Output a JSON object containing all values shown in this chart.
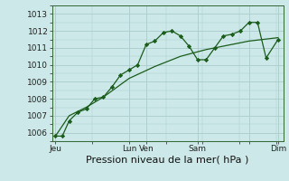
{
  "xlabel": "Pression niveau de la mer( hPa )",
  "ylim": [
    1005.5,
    1013.5
  ],
  "xlim": [
    0,
    13.5
  ],
  "background_color": "#cce8e8",
  "grid_color": "#aacccc",
  "line_color1": "#1a5c1a",
  "line_color2": "#1a5c1a",
  "x_tick_positions": [
    0.2,
    4.5,
    5.5,
    8.5,
    11.5,
    13.2
  ],
  "x_tick_labels": [
    "Jeu",
    "Lun",
    "Ven",
    "Sam",
    "",
    "Dim"
  ],
  "series1_x": [
    0.2,
    0.6,
    1.0,
    1.5,
    2.0,
    2.5,
    3.0,
    3.5,
    4.0,
    4.5,
    5.0,
    5.5,
    6.0,
    6.5,
    7.0,
    7.5,
    8.0,
    8.5,
    9.0,
    9.5,
    10.0,
    10.5,
    11.0,
    11.5,
    12.0,
    12.5,
    13.2
  ],
  "series1_y": [
    1005.8,
    1005.8,
    1006.7,
    1007.2,
    1007.4,
    1008.0,
    1008.1,
    1008.7,
    1009.4,
    1009.7,
    1010.0,
    1011.2,
    1011.4,
    1011.9,
    1012.0,
    1011.7,
    1011.1,
    1010.3,
    1010.3,
    1011.0,
    1011.7,
    1011.8,
    1012.0,
    1012.5,
    1012.5,
    1010.4,
    1011.5
  ],
  "series2_x": [
    0.2,
    1.0,
    2.0,
    3.0,
    4.5,
    6.0,
    7.5,
    9.0,
    10.5,
    11.5,
    13.2
  ],
  "series2_y": [
    1005.8,
    1007.0,
    1007.5,
    1008.1,
    1009.2,
    1009.9,
    1010.5,
    1010.9,
    1011.2,
    1011.4,
    1011.6
  ],
  "ytick_values": [
    1006,
    1007,
    1008,
    1009,
    1010,
    1011,
    1012,
    1013
  ],
  "xlabel_fontsize": 8,
  "ytick_fontsize": 6.5,
  "xtick_fontsize": 6.5
}
